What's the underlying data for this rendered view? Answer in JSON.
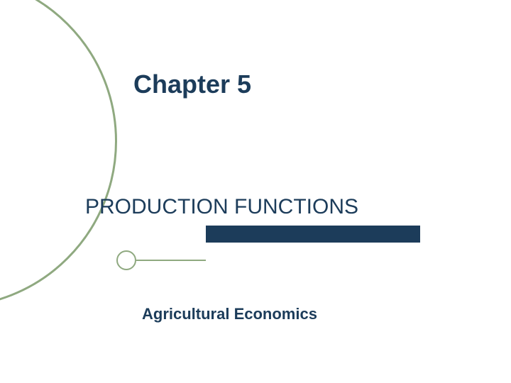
{
  "slide": {
    "chapter_title": "Chapter 5",
    "subtitle": "PRODUCTION FUNCTIONS",
    "author": "Agricultural Economics"
  },
  "styling": {
    "title_color": "#1c3c5a",
    "subtitle_color": "#1c3c5a",
    "author_color": "#1c3c5a",
    "accent_bar_color": "#1c3c5a",
    "circle_border_color": "#8fa980",
    "line_color": "#8fa980",
    "background_color": "#ffffff",
    "title_fontsize": 36,
    "subtitle_fontsize": 30,
    "author_fontsize": 22
  }
}
